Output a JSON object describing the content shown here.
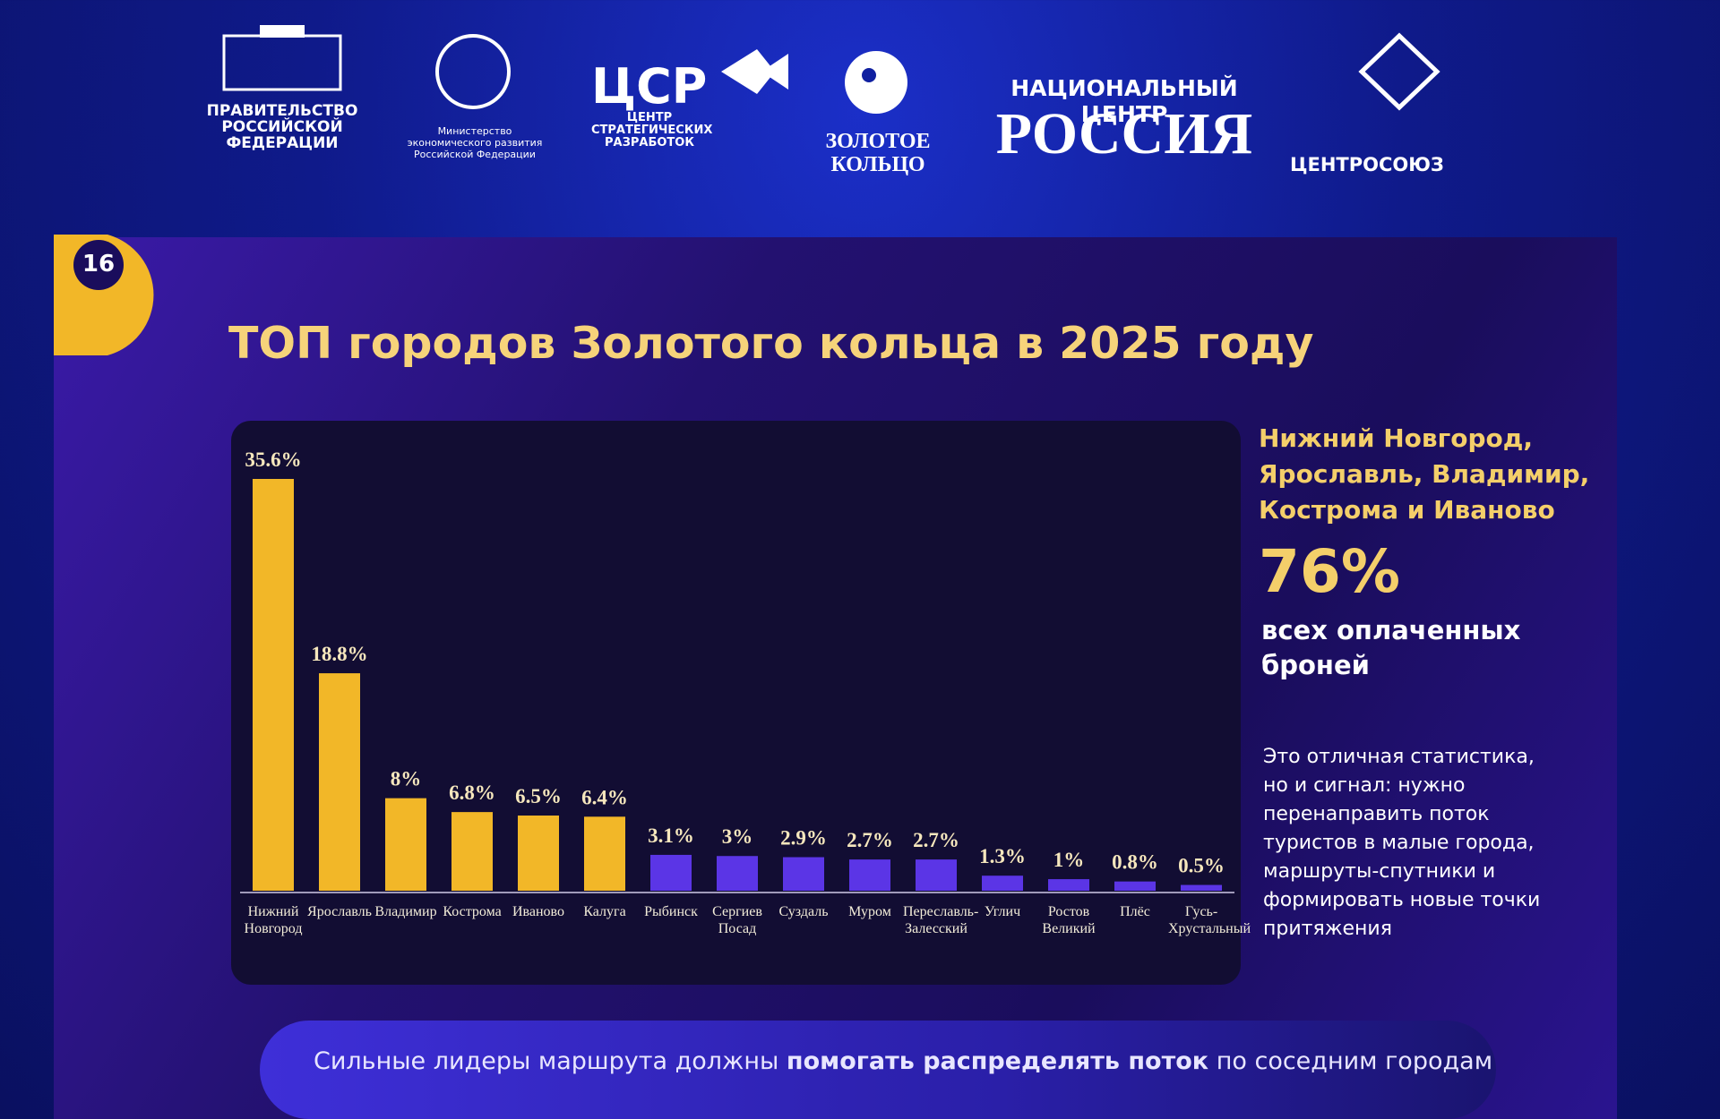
{
  "logos": {
    "government": "ПРАВИТЕЛЬСТВО РОССИЙСКОЙ ФЕДЕРАЦИИ",
    "ministry": "Министерство экономического развития Российской Федерации",
    "csr": "ЦСР",
    "csr_sub": "ЦЕНТР СТРАТЕГИЧЕСКИХ РАЗРАБОТОК",
    "golden_ring": "ЗОЛОТОЕ КОЛЬЦО",
    "national_center": "НАЦИОНАЛЬНЫЙ ЦЕНТР",
    "russia": "РОССИЯ",
    "centrosoyuz": "ЦЕНТРОСОЮЗ"
  },
  "slide_number": "16",
  "chart_data": {
    "type": "bar",
    "title": "ТОП городов Золотого кольца в 2025 году",
    "categories": [
      "Нижний Новгород",
      "Ярославль",
      "Владимир",
      "Кострома",
      "Иваново",
      "Калуга",
      "Рыбинск",
      "Сергиев Посад",
      "Суздаль",
      "Муром",
      "Переславль-Залесский",
      "Углич",
      "Ростов Великий",
      "Плёс",
      "Гусь-Хрустальный"
    ],
    "values": [
      35.6,
      18.8,
      8,
      6.8,
      6.5,
      6.4,
      3.1,
      3,
      2.9,
      2.7,
      2.7,
      1.3,
      1,
      0.8,
      0.5
    ],
    "value_labels": [
      "35.6%",
      "18.8%",
      "8%",
      "6.8%",
      "6.5%",
      "6.4%",
      "3.1%",
      "3%",
      "2.9%",
      "2.7%",
      "2.7%",
      "1.3%",
      "1%",
      "0.8%",
      "0.5%"
    ],
    "colors": [
      "#f2b728",
      "#f2b728",
      "#f2b728",
      "#f2b728",
      "#f2b728",
      "#f2b728",
      "#5b35e6",
      "#5b35e6",
      "#5b35e6",
      "#5b35e6",
      "#5b35e6",
      "#5b35e6",
      "#5b35e6",
      "#5b35e6",
      "#5b35e6"
    ]
  },
  "side": {
    "cities": "Нижний Новгород, Ярославль, Владимир, Кострома и Иваново",
    "share": "76%",
    "share_caption": "всех оплаченных броней",
    "note": "Это отличная статистика, но и сигнал: нужно перенаправить поток туристов в малые города, маршруты-спутники и формировать новые точки притяжения"
  },
  "banner": {
    "start": "Сильные лидеры маршрута должны",
    "bold": "помогать распределять поток",
    "end": "по соседним городам"
  }
}
